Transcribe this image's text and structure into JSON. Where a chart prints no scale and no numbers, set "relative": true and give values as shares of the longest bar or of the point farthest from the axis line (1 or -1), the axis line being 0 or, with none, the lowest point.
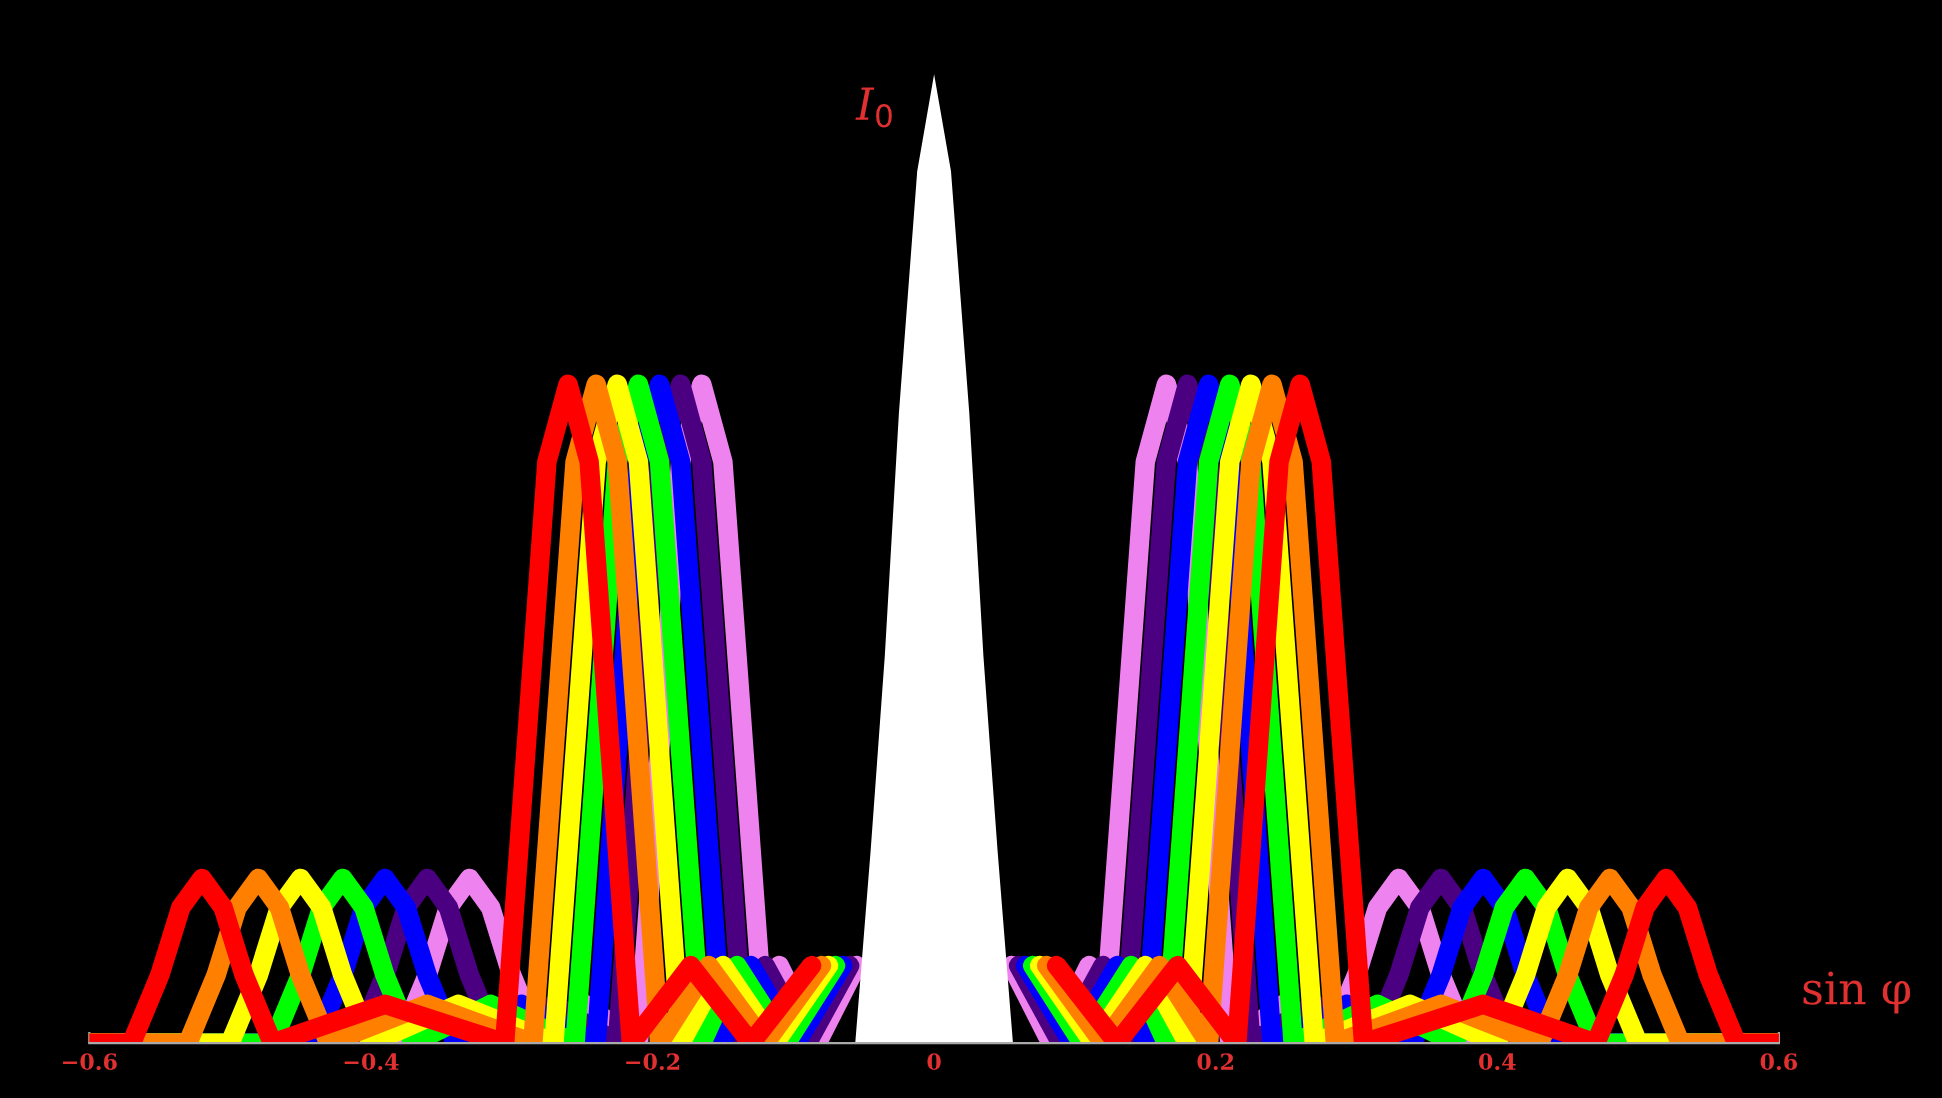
{
  "chart_data": {
    "type": "line",
    "relative": true,
    "xlabel": "sin φ",
    "xlim": [
      -0.6,
      0.6
    ],
    "xticks": [
      {
        "value": -0.6,
        "label": "−0.6"
      },
      {
        "value": -0.4,
        "label": "−0.4"
      },
      {
        "value": -0.2,
        "label": "−0.2"
      },
      0,
      0.2,
      0.4,
      0.6
    ],
    "annotations": [
      {
        "text": "I$_{0}$",
        "x": 0,
        "y": 1
      }
    ],
    "series": [
      {
        "color": "#ee82ee",
        "x": [
          -0.6,
          -0.38,
          -0.36,
          -0.345,
          -0.33,
          -0.315,
          -0.3,
          -0.28,
          -0.248,
          -0.21,
          -0.195,
          -0.18,
          -0.165,
          -0.15,
          -0.135,
          -0.12,
          -0.11,
          -0.083,
          -0.055,
          0,
          0.055,
          0.083,
          0.11,
          0.12,
          0.135,
          0.15,
          0.165,
          0.18,
          0.195,
          0.21,
          0.248,
          0.28,
          0.3,
          0.315,
          0.33,
          0.345,
          0.36,
          0.38,
          0.6
        ],
        "values": [
          0,
          0,
          0.07,
          0.14,
          0.17,
          0.14,
          0.07,
          0,
          0.04,
          0,
          0.3,
          0.6,
          0.68,
          0.6,
          0.3,
          0,
          0.08,
          0,
          0.08,
          null,
          0.08,
          0,
          0.08,
          0,
          0.3,
          0.6,
          0.68,
          0.6,
          0.3,
          0,
          0.04,
          0,
          0.07,
          0.14,
          0.17,
          0.14,
          0.07,
          0,
          0
        ]
      },
      {
        "color": "#4b0082",
        "x": [
          -0.6,
          -0.41,
          -0.39,
          -0.375,
          -0.36,
          -0.345,
          -0.33,
          -0.31,
          -0.27,
          -0.225,
          -0.21,
          -0.195,
          -0.18,
          -0.165,
          -0.15,
          -0.135,
          -0.12,
          -0.09,
          -0.06,
          0,
          0.06,
          0.09,
          0.12,
          0.135,
          0.15,
          0.165,
          0.18,
          0.195,
          0.21,
          0.225,
          0.27,
          0.31,
          0.33,
          0.345,
          0.36,
          0.375,
          0.39,
          0.41,
          0.6
        ],
        "values": [
          0,
          0,
          0.07,
          0.14,
          0.17,
          0.14,
          0.07,
          0,
          0.04,
          0,
          0.3,
          0.6,
          0.68,
          0.6,
          0.3,
          0,
          0.08,
          0,
          0.08,
          null,
          0.08,
          0,
          0.08,
          0,
          0.3,
          0.6,
          0.68,
          0.6,
          0.3,
          0,
          0.04,
          0,
          0.07,
          0.14,
          0.17,
          0.14,
          0.07,
          0,
          0
        ]
      },
      {
        "color": "#0000ff",
        "x": [
          -0.6,
          -0.44,
          -0.42,
          -0.405,
          -0.39,
          -0.375,
          -0.36,
          -0.34,
          -0.293,
          -0.24,
          -0.225,
          -0.21,
          -0.195,
          -0.18,
          -0.165,
          -0.15,
          -0.13,
          -0.098,
          -0.065,
          0,
          0.065,
          0.098,
          0.13,
          0.15,
          0.165,
          0.18,
          0.195,
          0.21,
          0.225,
          0.24,
          0.293,
          0.34,
          0.36,
          0.375,
          0.39,
          0.405,
          0.42,
          0.44,
          0.6
        ],
        "values": [
          0,
          0,
          0.07,
          0.14,
          0.17,
          0.14,
          0.07,
          0,
          0.04,
          0,
          0.3,
          0.6,
          0.68,
          0.6,
          0.3,
          0,
          0.08,
          0,
          0.08,
          null,
          0.08,
          0,
          0.08,
          0,
          0.3,
          0.6,
          0.68,
          0.6,
          0.3,
          0,
          0.04,
          0,
          0.07,
          0.14,
          0.17,
          0.14,
          0.07,
          0,
          0
        ]
      },
      {
        "color": "#00ff00",
        "x": [
          -0.6,
          -0.47,
          -0.45,
          -0.435,
          -0.42,
          -0.405,
          -0.39,
          -0.37,
          -0.315,
          -0.255,
          -0.24,
          -0.225,
          -0.21,
          -0.195,
          -0.18,
          -0.165,
          -0.14,
          -0.105,
          -0.07,
          0,
          0.07,
          0.105,
          0.14,
          0.165,
          0.18,
          0.195,
          0.21,
          0.225,
          0.24,
          0.255,
          0.315,
          0.37,
          0.39,
          0.405,
          0.42,
          0.435,
          0.45,
          0.47,
          0.6
        ],
        "values": [
          0,
          0,
          0.07,
          0.14,
          0.17,
          0.14,
          0.07,
          0,
          0.04,
          0,
          0.3,
          0.6,
          0.68,
          0.6,
          0.3,
          0,
          0.08,
          0,
          0.08,
          null,
          0.08,
          0,
          0.08,
          0,
          0.3,
          0.6,
          0.68,
          0.6,
          0.3,
          0,
          0.04,
          0,
          0.07,
          0.14,
          0.17,
          0.14,
          0.07,
          0,
          0
        ]
      },
      {
        "color": "#ffff00",
        "x": [
          -0.6,
          -0.5,
          -0.48,
          -0.465,
          -0.45,
          -0.435,
          -0.42,
          -0.4,
          -0.338,
          -0.27,
          -0.255,
          -0.24,
          -0.225,
          -0.21,
          -0.195,
          -0.18,
          -0.15,
          -0.113,
          -0.075,
          0,
          0.075,
          0.113,
          0.15,
          0.18,
          0.195,
          0.21,
          0.225,
          0.24,
          0.255,
          0.27,
          0.338,
          0.4,
          0.42,
          0.435,
          0.45,
          0.465,
          0.48,
          0.5,
          0.6
        ],
        "values": [
          0,
          0,
          0.07,
          0.14,
          0.17,
          0.14,
          0.07,
          0,
          0.04,
          0,
          0.3,
          0.6,
          0.68,
          0.6,
          0.3,
          0,
          0.08,
          0,
          0.08,
          null,
          0.08,
          0,
          0.08,
          0,
          0.3,
          0.6,
          0.68,
          0.6,
          0.3,
          0,
          0.04,
          0,
          0.07,
          0.14,
          0.17,
          0.14,
          0.07,
          0,
          0
        ]
      },
      {
        "color": "#ff8000",
        "x": [
          -0.6,
          -0.53,
          -0.51,
          -0.495,
          -0.48,
          -0.465,
          -0.45,
          -0.43,
          -0.36,
          -0.285,
          -0.27,
          -0.255,
          -0.24,
          -0.225,
          -0.21,
          -0.195,
          -0.16,
          -0.12,
          -0.08,
          0,
          0.08,
          0.12,
          0.16,
          0.195,
          0.21,
          0.225,
          0.24,
          0.255,
          0.27,
          0.285,
          0.36,
          0.43,
          0.45,
          0.465,
          0.48,
          0.495,
          0.51,
          0.53,
          0.6
        ],
        "values": [
          0,
          0,
          0.07,
          0.14,
          0.17,
          0.14,
          0.07,
          0,
          0.04,
          0,
          0.3,
          0.6,
          0.68,
          0.6,
          0.3,
          0,
          0.08,
          0,
          0.08,
          null,
          0.08,
          0,
          0.08,
          0,
          0.3,
          0.6,
          0.68,
          0.6,
          0.3,
          0,
          0.04,
          0,
          0.07,
          0.14,
          0.17,
          0.14,
          0.07,
          0,
          0
        ]
      },
      {
        "color": "#ff0000",
        "x": [
          -0.6,
          -0.57,
          -0.55,
          -0.535,
          -0.52,
          -0.505,
          -0.49,
          -0.47,
          -0.39,
          -0.305,
          -0.29,
          -0.275,
          -0.26,
          -0.245,
          -0.23,
          -0.215,
          -0.173,
          -0.13,
          -0.087,
          0,
          0.087,
          0.13,
          0.173,
          0.215,
          0.23,
          0.245,
          0.26,
          0.275,
          0.29,
          0.305,
          0.39,
          0.47,
          0.49,
          0.505,
          0.52,
          0.535,
          0.55,
          0.57,
          0.6
        ],
        "values": [
          0,
          0,
          0.07,
          0.14,
          0.17,
          0.14,
          0.07,
          0,
          0.04,
          0,
          0.3,
          0.6,
          0.68,
          0.6,
          0.3,
          0,
          0.08,
          0,
          0.08,
          null,
          0.08,
          0,
          0.08,
          0,
          0.3,
          0.6,
          0.68,
          0.6,
          0.3,
          0,
          0.04,
          0,
          0.07,
          0.14,
          0.17,
          0.14,
          0.07,
          0,
          0
        ]
      },
      {
        "type": "area",
        "color": "#ffffff",
        "x": [
          -0.056,
          -0.045,
          -0.035,
          -0.025,
          -0.012,
          0,
          0.012,
          0.025,
          0.035,
          0.045,
          0.056
        ],
        "values": [
          0,
          0.2,
          0.4,
          0.65,
          0.9,
          1,
          0.9,
          0.65,
          0.4,
          0.2,
          0
        ]
      }
    ]
  }
}
